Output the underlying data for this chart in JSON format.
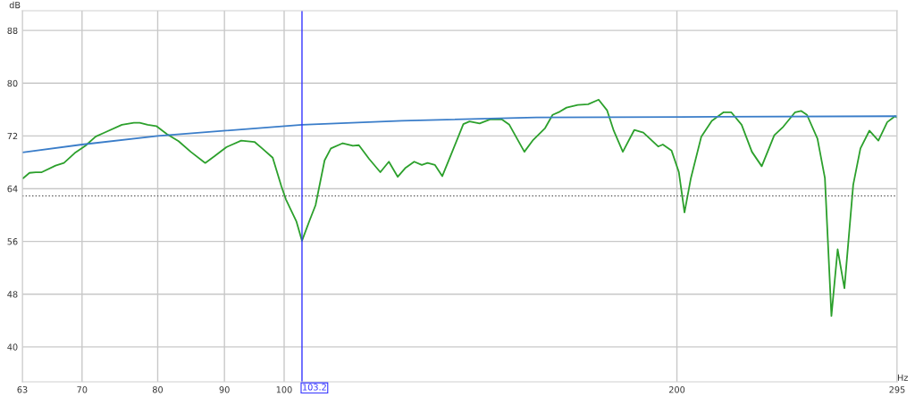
{
  "chart_data": {
    "type": "line",
    "xlabel": "Hz",
    "ylabel": "dB",
    "log": "x",
    "xlim": [
      63,
      295
    ],
    "xticks": [
      63,
      70,
      80,
      90,
      100,
      200,
      295
    ],
    "ylim": [
      34.7,
      91
    ],
    "yticks": [
      40,
      48,
      56,
      64,
      72,
      80,
      88
    ],
    "grid": true,
    "legend": false,
    "marker": "none",
    "line_style": "solid",
    "series": [
      {
        "color": "#2ca02c",
        "x": [
          63.1,
          63.8,
          64.5,
          65.2,
          66.8,
          67.8,
          69.1,
          70.4,
          71.7,
          72.8,
          75.1,
          76.7,
          77.5,
          78.6,
          79.8,
          81.3,
          83.0,
          84.8,
          87.0,
          88.4,
          90.3,
          92.7,
          94.9,
          96.2,
          98.0,
          99.5,
          100.3,
          102.2,
          103.2,
          104.6,
          105.7,
          107.4,
          108.6,
          110.9,
          112.9,
          114.1,
          116.2,
          118.5,
          120.3,
          122.2,
          123.8,
          125.8,
          127.5,
          128.8,
          130.5,
          132.2,
          134.4,
          137.2,
          138.7,
          141.2,
          143.8,
          146.9,
          148.8,
          152.8,
          155.2,
          158.5,
          160.6,
          162.7,
          164.6,
          167.9,
          171.0,
          174.2,
          176.8,
          178.9,
          181.8,
          185.5,
          188.5,
          193.5,
          195.1,
          198.1,
          200.7,
          202.7,
          205.0,
          208.8,
          212.7,
          217.2,
          220.1,
          224.2,
          228.3,
          232.3,
          237.5,
          241.3,
          246.4,
          249.0,
          251.6,
          256.3,
          259.7,
          262.7,
          265.6,
          268.8,
          273.0,
          276.5,
          280.9,
          285.4,
          289.9,
          293.9,
          295
        ],
        "values": [
          65.6,
          66.4,
          66.5,
          66.5,
          67.5,
          67.9,
          69.4,
          70.5,
          71.9,
          72.5,
          73.7,
          74.0,
          74.0,
          73.7,
          73.5,
          72.3,
          71.2,
          69.6,
          67.9,
          68.9,
          70.3,
          71.3,
          71.1,
          70.1,
          68.7,
          64.4,
          62.4,
          59.0,
          56.1,
          59.2,
          61.5,
          68.3,
          70.1,
          70.9,
          70.5,
          70.6,
          68.5,
          66.5,
          68.1,
          65.8,
          67.1,
          68.1,
          67.6,
          67.9,
          67.6,
          65.9,
          69.4,
          73.8,
          74.2,
          73.9,
          74.5,
          74.5,
          73.7,
          69.6,
          71.4,
          73.2,
          75.2,
          75.7,
          76.3,
          76.7,
          76.8,
          77.5,
          75.9,
          72.8,
          69.6,
          72.9,
          72.5,
          70.4,
          70.7,
          69.8,
          66.5,
          60.4,
          65.6,
          71.9,
          74.3,
          75.6,
          75.6,
          73.7,
          69.6,
          67.4,
          72.1,
          73.4,
          75.6,
          75.8,
          75.2,
          71.6,
          65.6,
          44.7,
          54.8,
          48.9,
          64.6,
          70.1,
          72.8,
          71.3,
          74.1,
          75.0,
          74.8
        ]
      },
      {
        "color": "#3a7dc9",
        "x": [
          63,
          70,
          80,
          103.2,
          123.1,
          156.0,
          213.9,
          295
        ],
        "values": [
          69.5,
          70.7,
          72.0,
          73.7,
          74.3,
          74.8,
          74.9,
          75.0
        ]
      }
    ],
    "ref_lines": [
      {
        "axis": "y",
        "value": 62.9,
        "color": "#555555",
        "line_style": "dotted"
      },
      {
        "axis": "x",
        "value": 103.2,
        "label": "103.2",
        "color": "#3333ff",
        "line_style": "solid"
      }
    ]
  }
}
